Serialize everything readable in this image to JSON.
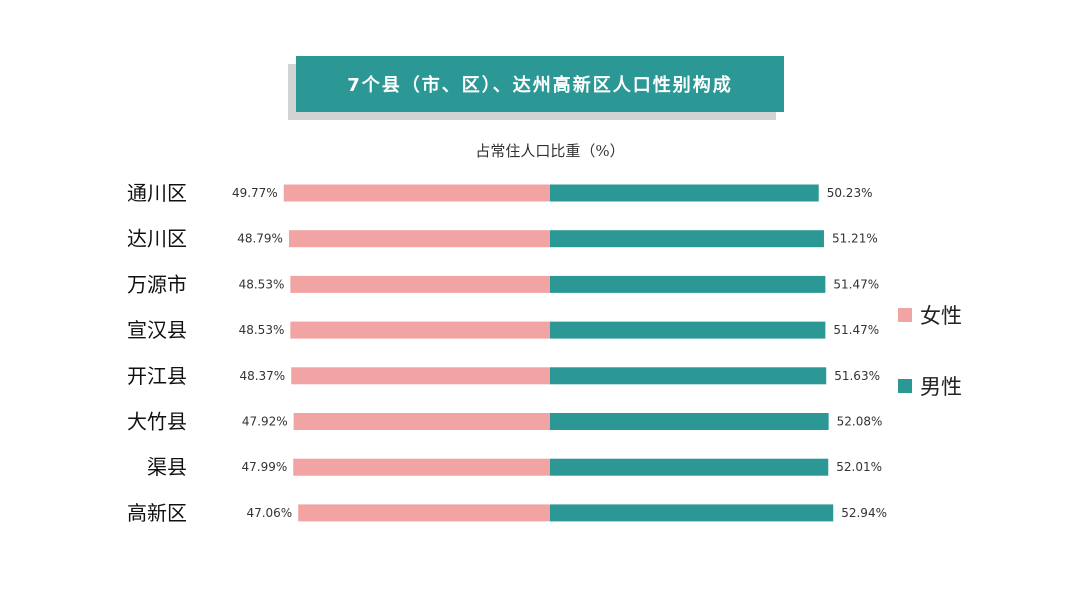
{
  "title": "7个县（市、区）、达州高新区人口性别构成",
  "subtitle": "占常住人口比重（%）",
  "colors": {
    "female": "#f2a3a3",
    "male": "#2b9895",
    "title_bg": "#2b9895"
  },
  "chart_data": {
    "type": "bar",
    "orientation": "horizontal-diverging",
    "categories": [
      "通川区",
      "达川区",
      "万源市",
      "宣汉县",
      "开江县",
      "大竹县",
      "渠县",
      "高新区"
    ],
    "series": [
      {
        "name": "女性",
        "values": [
          49.77,
          48.79,
          48.53,
          48.53,
          48.37,
          47.92,
          47.99,
          47.06
        ],
        "labels": [
          "49.77%",
          "48.79%",
          "48.53%",
          "48.53%",
          "48.37%",
          "47.92%",
          "47.99%",
          "47.06%"
        ]
      },
      {
        "name": "男性",
        "values": [
          50.23,
          51.21,
          51.47,
          51.47,
          51.63,
          52.08,
          52.01,
          52.94
        ],
        "labels": [
          "50.23%",
          "51.21%",
          "51.47%",
          "51.47%",
          "51.63%",
          "52.08%",
          "52.01%",
          "52.94%"
        ]
      }
    ],
    "legend_position": "right",
    "grid": false
  }
}
